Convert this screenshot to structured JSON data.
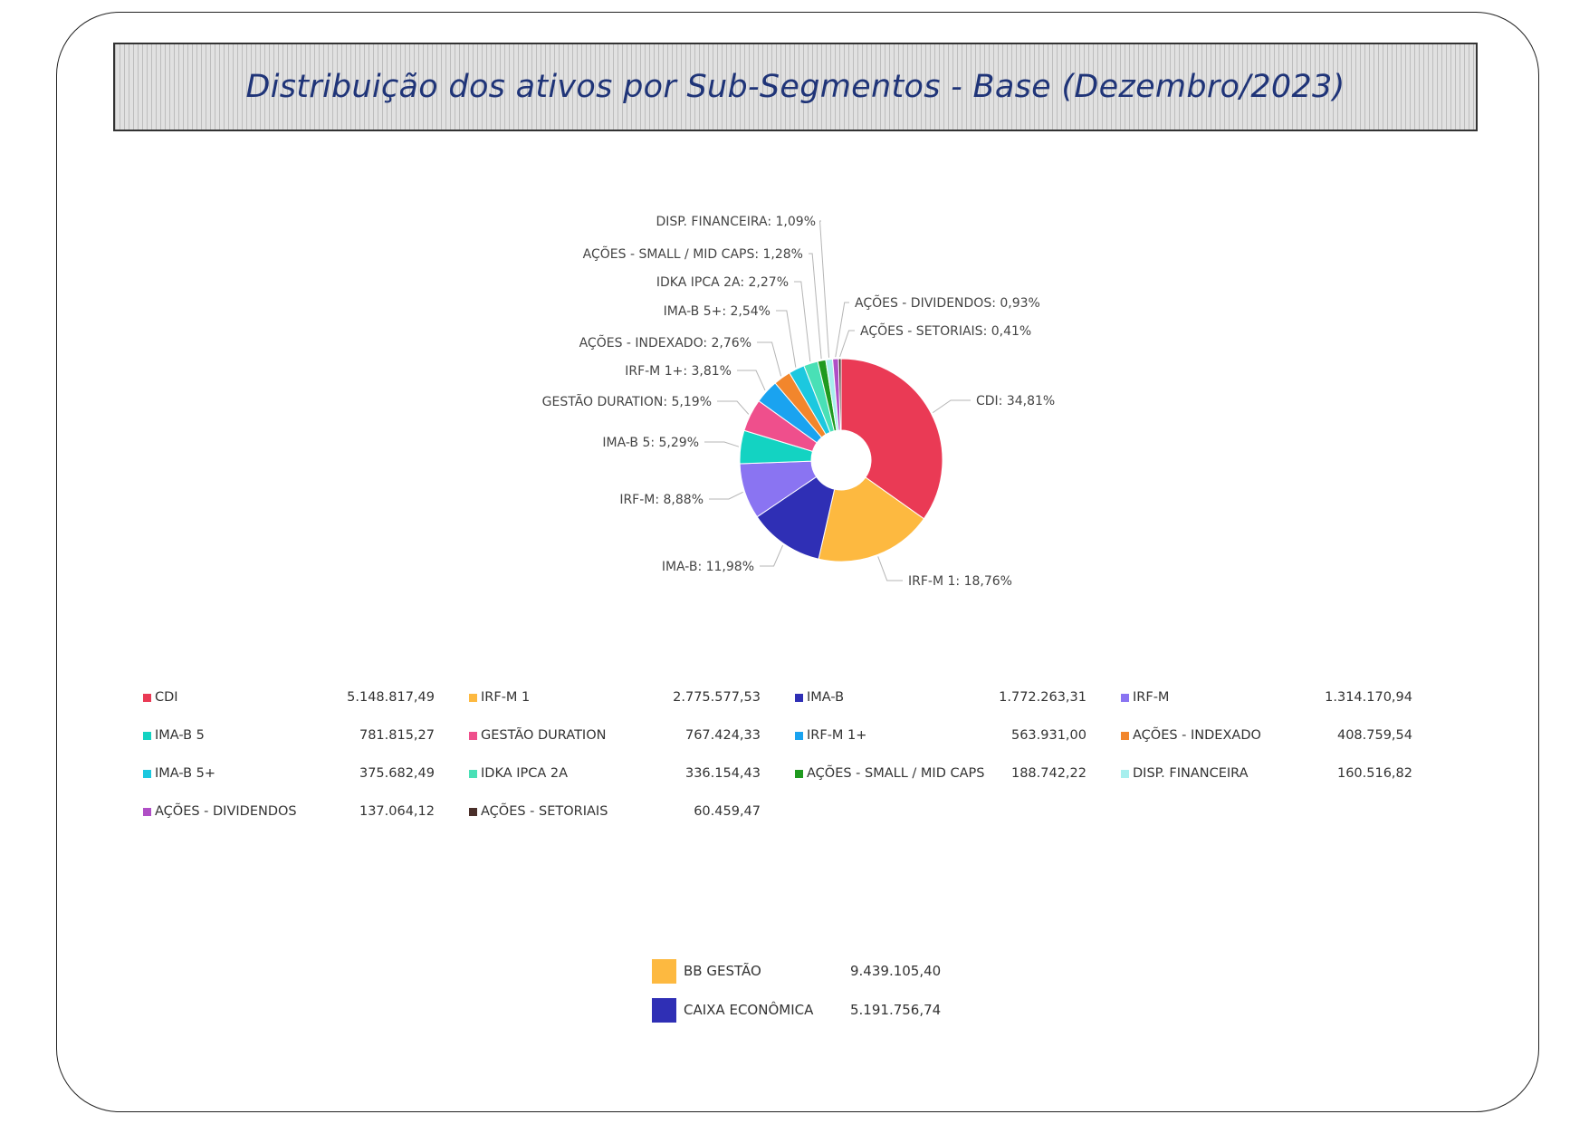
{
  "chart_data": {
    "type": "pie",
    "title": "Distribuição dos ativos por Sub-Segmentos - Base (Dezembro/2023)",
    "slices": [
      {
        "label": "CDI",
        "percent_label": "34,81%",
        "percent": 34.81,
        "value_label": "5.148.817,49",
        "value": 5148817.49,
        "color": "#ea3a55"
      },
      {
        "label": "IRF-M 1",
        "percent_label": "18,76%",
        "percent": 18.76,
        "value_label": "2.775.577,53",
        "value": 2775577.53,
        "color": "#fdb940"
      },
      {
        "label": "IMA-B",
        "percent_label": "11,98%",
        "percent": 11.98,
        "value_label": "1.772.263,31",
        "value": 1772263.31,
        "color": "#2f2fb5"
      },
      {
        "label": "IRF-M",
        "percent_label": "8,88%",
        "percent": 8.88,
        "value_label": "1.314.170,94",
        "value": 1314170.94,
        "color": "#8a74f2"
      },
      {
        "label": "IMA-B 5",
        "percent_label": "5,29%",
        "percent": 5.29,
        "value_label": "781.815,27",
        "value": 781815.27,
        "color": "#13d3c2"
      },
      {
        "label": "GESTÃO DURATION",
        "percent_label": "5,19%",
        "percent": 5.19,
        "value_label": "767.424,33",
        "value": 767424.33,
        "color": "#ef4f8c"
      },
      {
        "label": "IRF-M 1+",
        "percent_label": "3,81%",
        "percent": 3.81,
        "value_label": "563.931,00",
        "value": 563931.0,
        "color": "#1aa3f0"
      },
      {
        "label": "AÇÕES - INDEXADO",
        "percent_label": "2,76%",
        "percent": 2.76,
        "value_label": "408.759,54",
        "value": 408759.54,
        "color": "#f2862c"
      },
      {
        "label": "IMA-B 5+",
        "percent_label": "2,54%",
        "percent": 2.54,
        "value_label": "375.682,49",
        "value": 375682.49,
        "color": "#1cc8df"
      },
      {
        "label": "IDKA IPCA 2A",
        "percent_label": "2,27%",
        "percent": 2.27,
        "value_label": "336.154,43",
        "value": 336154.43,
        "color": "#49e0b6"
      },
      {
        "label": "AÇÕES - SMALL / MID CAPS",
        "percent_label": "1,28%",
        "percent": 1.28,
        "value_label": "188.742,22",
        "value": 188742.22,
        "color": "#1f9a1f"
      },
      {
        "label": "DISP. FINANCEIRA",
        "percent_label": "1,09%",
        "percent": 1.09,
        "value_label": "160.516,82",
        "value": 160516.82,
        "color": "#a7efee"
      },
      {
        "label": "AÇÕES - DIVIDENDOS",
        "percent_label": "0,93%",
        "percent": 0.93,
        "value_label": "137.064,12",
        "value": 137064.12,
        "color": "#b04fc6"
      },
      {
        "label": "AÇÕES - SETORIAIS",
        "percent_label": "0,41%",
        "percent": 0.41,
        "value_label": "60.459,47",
        "value": 60459.47,
        "color": "#4a2f2a"
      }
    ],
    "legend_placement": "bottom",
    "totals": [
      {
        "label": "BB GESTÃO",
        "value_label": "9.439.105,40",
        "value": 9439105.4,
        "color": "#fdb940"
      },
      {
        "label": "CAIXA ECONÔMICA",
        "value_label": "5.191.756,74",
        "value": 5191756.74,
        "color": "#2f2fb5"
      }
    ]
  }
}
